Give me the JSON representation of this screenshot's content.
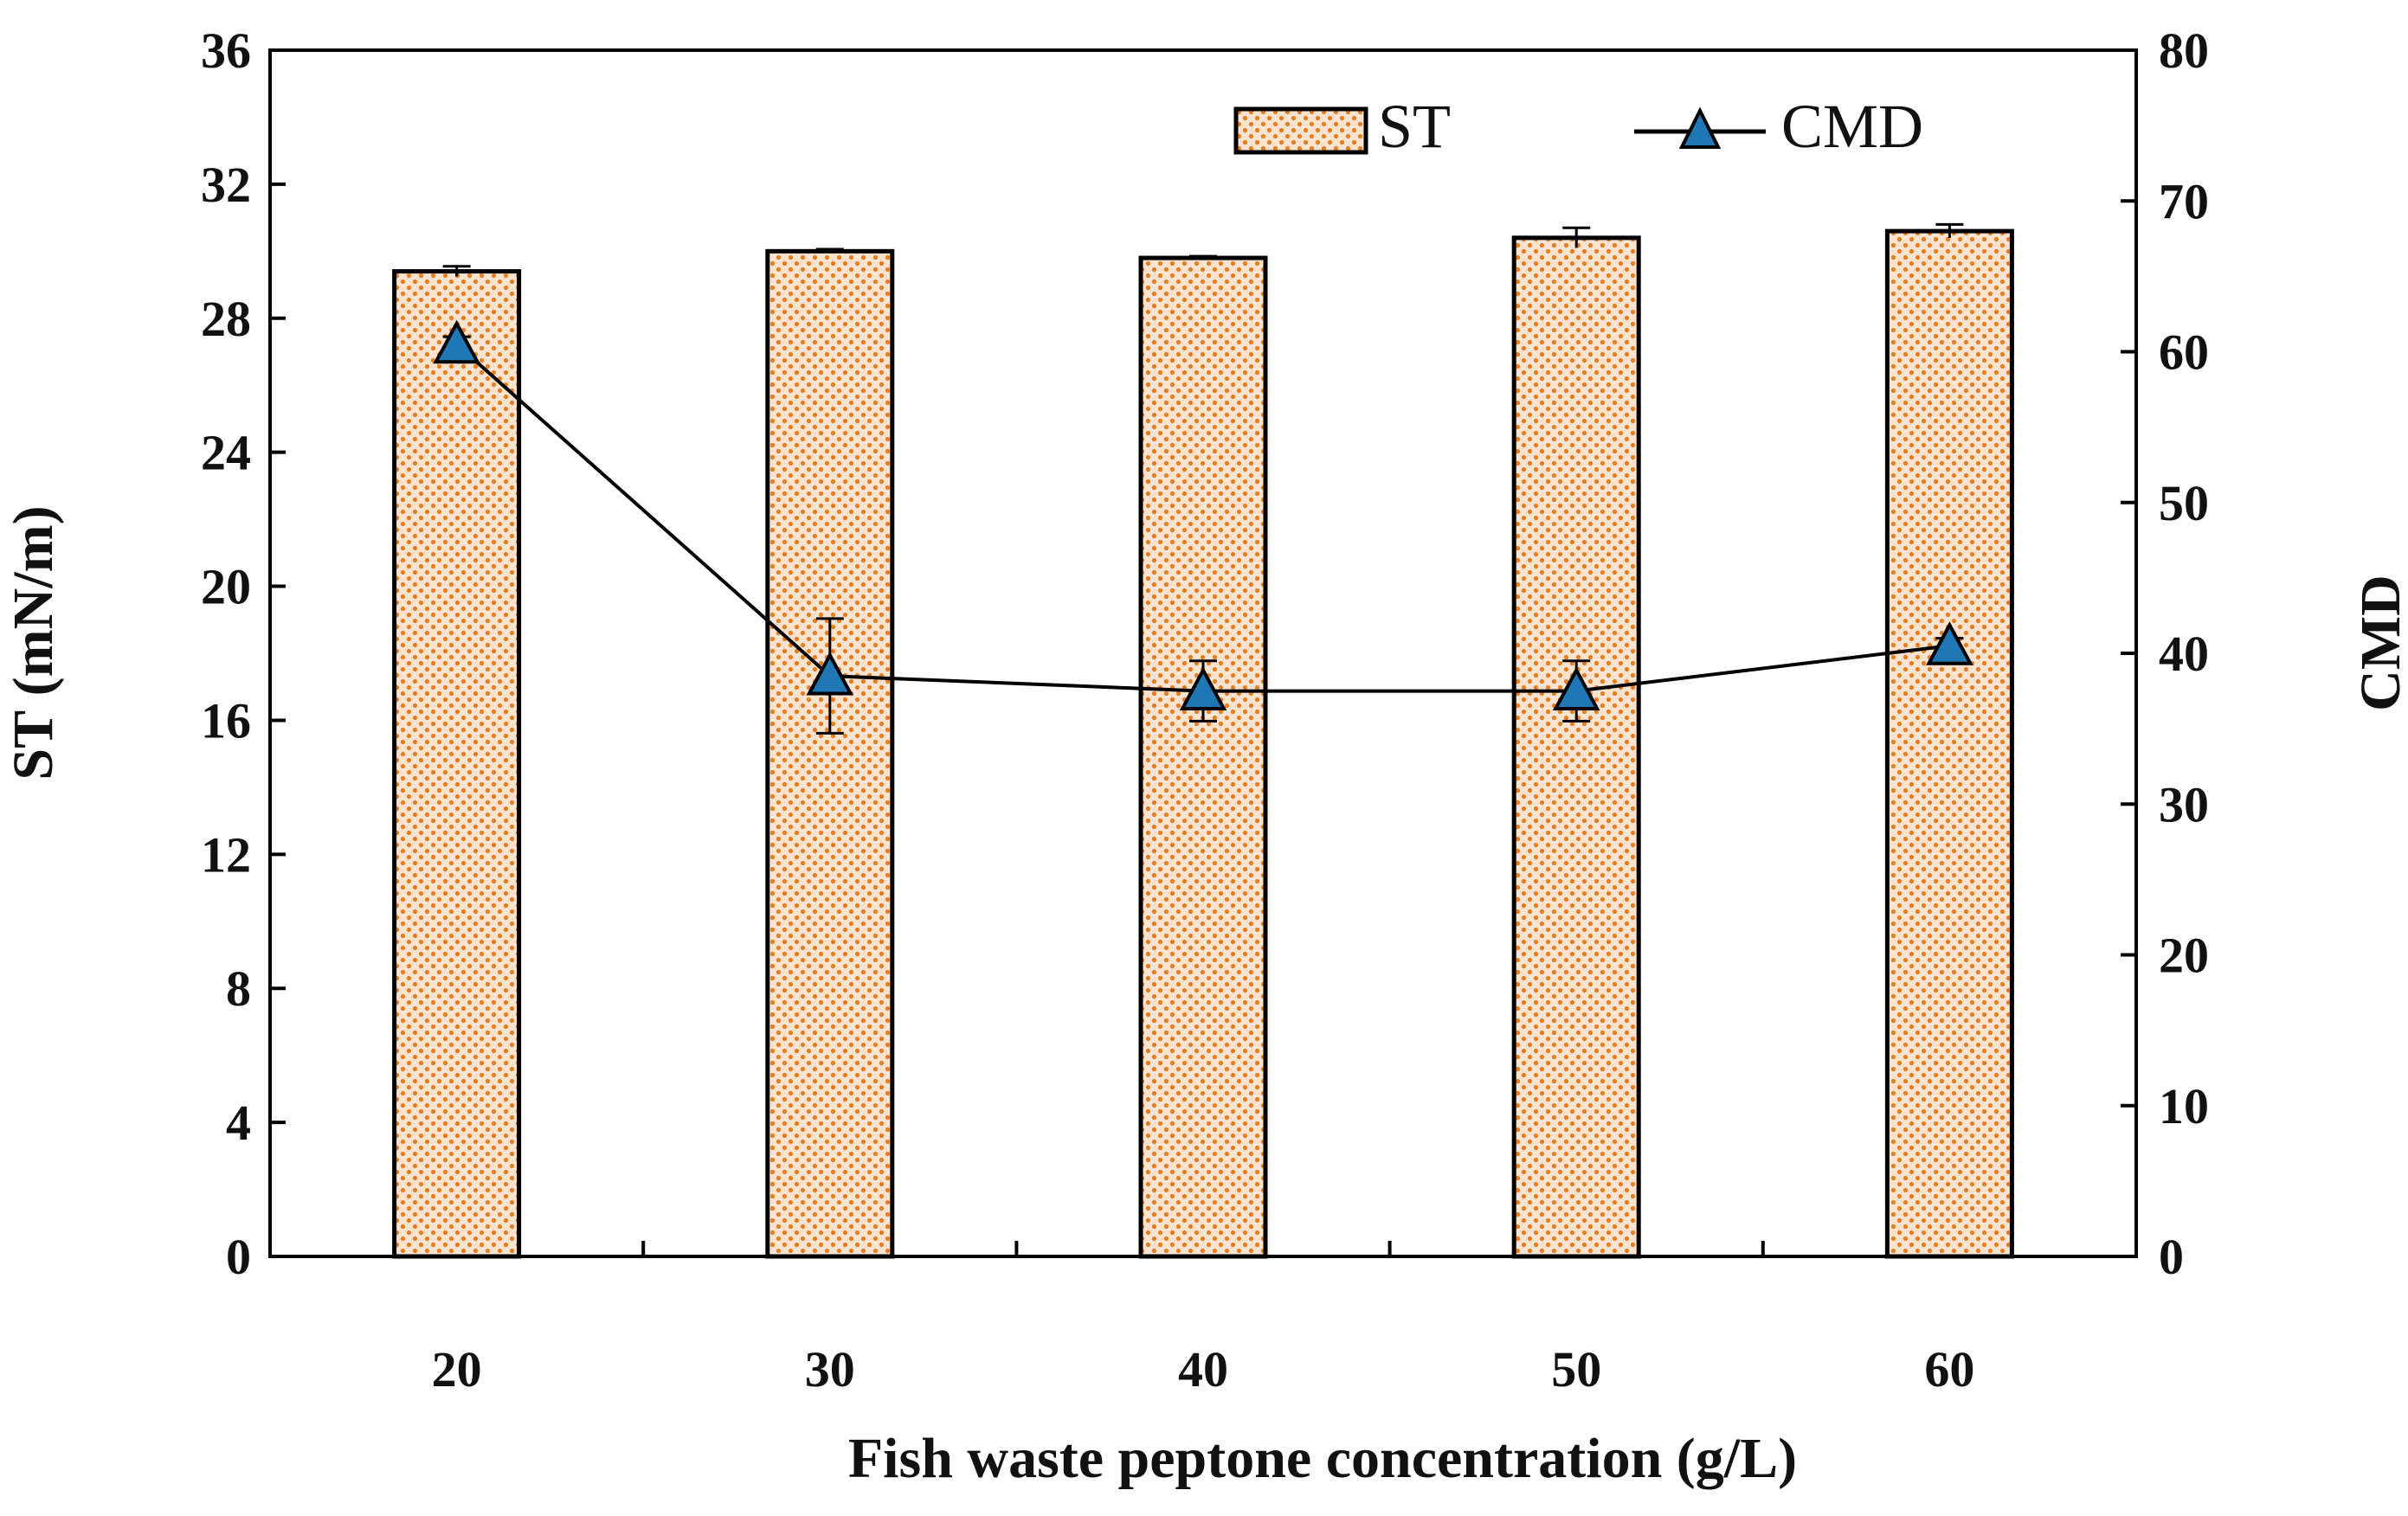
{
  "chart_data": {
    "type": "bar+line",
    "xlabel": "Fish waste peptone concentration (g/L)",
    "categories": [
      "20",
      "30",
      "40",
      "50",
      "60"
    ],
    "left_axis": {
      "label": "ST (mN/m)",
      "ylim": [
        0,
        36
      ],
      "ticks": [
        "0",
        "4",
        "8",
        "12",
        "16",
        "20",
        "24",
        "28",
        "32",
        "36"
      ]
    },
    "right_axis": {
      "label": "CMD",
      "ylim": [
        0,
        80
      ],
      "ticks": [
        "0",
        "10",
        "20",
        "30",
        "40",
        "50",
        "60",
        "70",
        "80"
      ]
    },
    "series": [
      {
        "name": "ST",
        "type": "bar",
        "axis": "left",
        "values": [
          29.4,
          30.0,
          29.8,
          30.4,
          30.6
        ],
        "errors": [
          0.15,
          0.06,
          0.05,
          0.3,
          0.2
        ],
        "color": "#e67e22",
        "pattern": "dots"
      },
      {
        "name": "CMD",
        "type": "line",
        "axis": "right",
        "values": [
          60.5,
          38.5,
          37.5,
          37.5,
          40.5
        ],
        "errors": [
          0.5,
          3.8,
          2.0,
          2.0,
          0.5
        ],
        "color": "#000000",
        "marker": "triangle",
        "marker_color": "#1f77b4"
      }
    ],
    "legend": {
      "position": "top-right",
      "entries": [
        "ST",
        "CMD"
      ]
    }
  }
}
